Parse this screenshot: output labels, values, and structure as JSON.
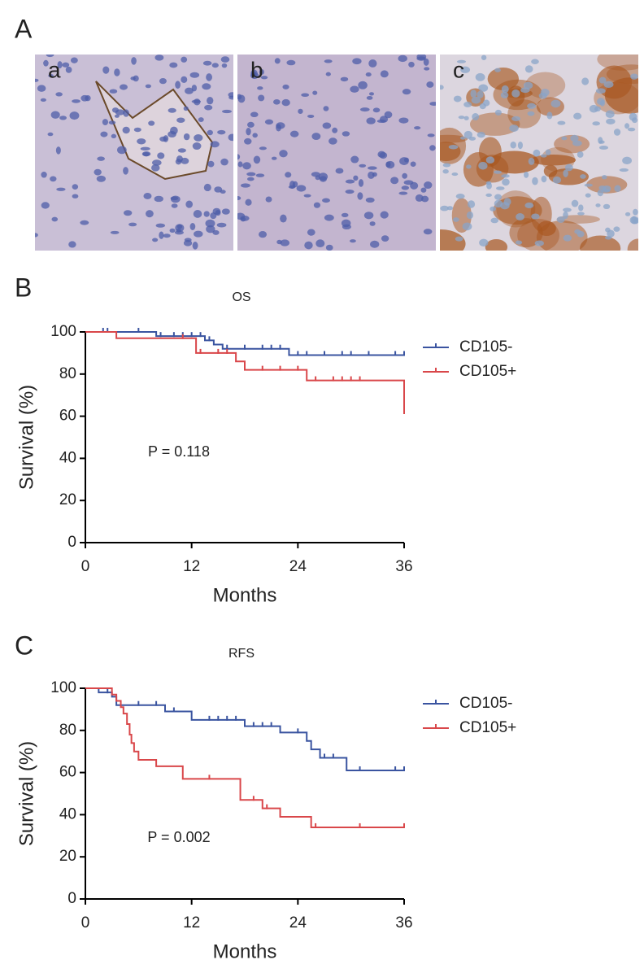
{
  "figure": {
    "panel_labels": [
      "A",
      "B",
      "C"
    ],
    "image_labels": [
      "a",
      "b",
      "c"
    ]
  },
  "chart_data": [
    {
      "type": "survival",
      "title": "OS",
      "x_label": "Months",
      "y_label": "Survival (%)",
      "annotation": "P = 0.118",
      "xlim": [
        0,
        36
      ],
      "ylim": [
        0,
        100
      ],
      "xticks": [
        0,
        12,
        24,
        36
      ],
      "yticks": [
        0,
        20,
        40,
        60,
        80,
        100
      ],
      "series": [
        {
          "name": "CD105-",
          "color": "#3a54a0",
          "x": [
            0,
            8,
            13.5,
            14.5,
            15.5,
            23,
            36
          ],
          "values": [
            100,
            98,
            96,
            94,
            92,
            89,
            89
          ],
          "censor_x": [
            2,
            2.5,
            6,
            8.5,
            10,
            11,
            12,
            13,
            14,
            16,
            18,
            20,
            21,
            22,
            24,
            25,
            27,
            29,
            30,
            32,
            35,
            36
          ],
          "censor_values": [
            100,
            100,
            100,
            98,
            98,
            98,
            98,
            98,
            96,
            92,
            92,
            92,
            92,
            92,
            89,
            89,
            89,
            89,
            89,
            89,
            89,
            89
          ]
        },
        {
          "name": "CD105+",
          "color": "#d9474a",
          "x": [
            0,
            3.5,
            12.5,
            17,
            18,
            25,
            36
          ],
          "values": [
            100,
            97,
            90,
            86,
            82,
            77,
            61
          ],
          "censor_x": [
            11,
            13,
            15,
            16,
            20,
            22,
            24,
            26,
            28,
            29,
            30,
            31
          ],
          "censor_values": [
            97,
            90,
            90,
            90,
            82,
            82,
            82,
            77,
            77,
            77,
            77,
            77
          ]
        }
      ]
    },
    {
      "type": "survival",
      "title": "RFS",
      "x_label": "Months",
      "y_label": "Survival (%)",
      "annotation": "P = 0.002",
      "xlim": [
        0,
        36
      ],
      "ylim": [
        0,
        100
      ],
      "xticks": [
        0,
        12,
        24,
        36
      ],
      "yticks": [
        0,
        20,
        40,
        60,
        80,
        100
      ],
      "series": [
        {
          "name": "CD105-",
          "color": "#3a54a0",
          "x": [
            0,
            1.5,
            3,
            3.5,
            9,
            12,
            18,
            22,
            25,
            25.5,
            26.5,
            29.5,
            36
          ],
          "values": [
            100,
            98,
            96,
            92,
            89,
            85,
            82,
            79,
            75,
            71,
            67,
            61,
            61
          ],
          "censor_x": [
            2.5,
            6,
            8,
            10,
            14,
            15,
            16,
            17,
            19,
            20,
            21,
            24,
            27,
            28,
            31,
            35,
            36
          ],
          "censor_values": [
            98,
            92,
            92,
            89,
            85,
            85,
            85,
            85,
            82,
            82,
            82,
            79,
            67,
            67,
            61,
            61,
            61
          ]
        },
        {
          "name": "CD105+",
          "color": "#d9474a",
          "x": [
            0,
            3,
            3.5,
            4,
            4.3,
            4.7,
            5,
            5.2,
            5.5,
            6,
            8,
            11,
            17.5,
            20,
            22,
            25.5,
            36
          ],
          "values": [
            100,
            97,
            94,
            91,
            88,
            83,
            78,
            74,
            70,
            66,
            63,
            57,
            47,
            43,
            39,
            34,
            34
          ],
          "censor_x": [
            14,
            19,
            20.5,
            26,
            31,
            36
          ],
          "censor_values": [
            57,
            47,
            43,
            34,
            34,
            34
          ]
        }
      ]
    }
  ]
}
